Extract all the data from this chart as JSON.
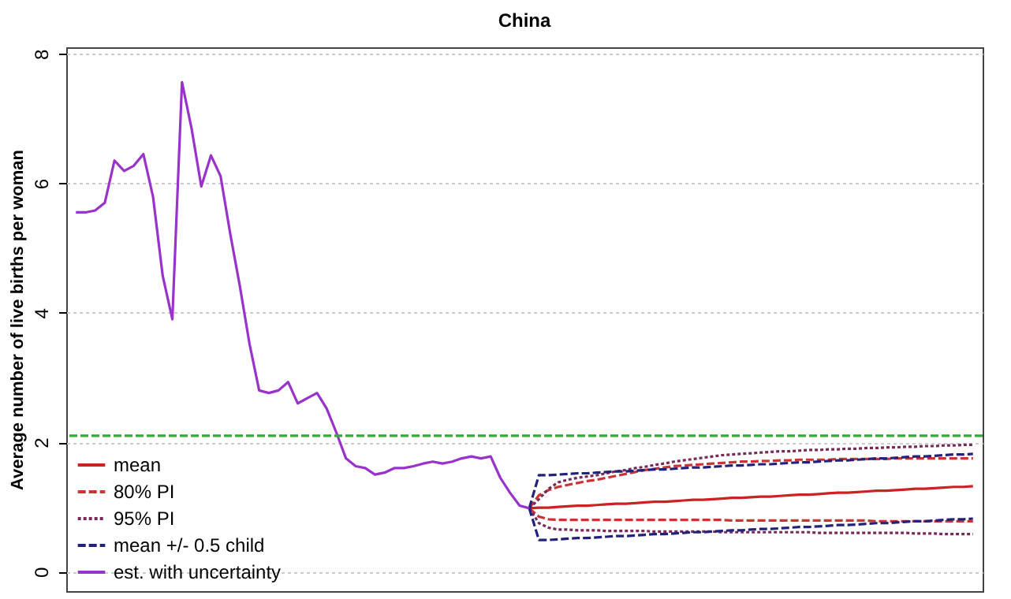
{
  "chart_data": {
    "type": "line",
    "title": "China",
    "ylabel": "Average number of live births per woman",
    "categories": [
      null,
      null,
      null,
      null,
      null,
      null,
      null,
      null,
      null,
      null,
      null,
      null,
      null,
      null,
      null,
      null,
      null,
      null,
      null,
      null,
      null,
      null,
      null,
      null,
      null,
      null,
      null,
      null,
      null,
      null,
      null,
      null,
      null,
      null,
      null,
      null,
      null,
      null,
      null,
      null,
      null,
      null,
      null,
      null,
      null,
      null,
      null,
      null,
      null,
      null,
      null,
      null,
      null,
      null,
      null,
      null,
      null,
      null,
      null,
      null,
      null,
      null,
      null,
      null,
      null,
      null,
      null,
      null,
      null,
      null,
      null,
      null,
      null,
      null,
      null,
      null,
      null,
      null,
      null,
      null,
      null,
      null,
      null,
      null,
      null,
      null,
      null,
      null,
      null,
      null,
      null,
      null,
      null,
      null
    ],
    "ylim": [
      -0.3,
      8.1
    ],
    "yticks": [
      0,
      2,
      4,
      6,
      8
    ],
    "grid": "y",
    "tick_labels": "y",
    "legend": "bottom left",
    "ref_lines": [
      {
        "axis": "y",
        "value": 2.1,
        "color": "#33aa33",
        "line_style": "dashed"
      }
    ],
    "series": [
      {
        "name": "mean",
        "color": "#cc2222",
        "line_style": "solid",
        "values": [
          null,
          null,
          null,
          null,
          null,
          null,
          null,
          null,
          null,
          null,
          null,
          null,
          null,
          null,
          null,
          null,
          null,
          null,
          null,
          null,
          null,
          null,
          null,
          null,
          null,
          null,
          null,
          null,
          null,
          null,
          null,
          null,
          null,
          null,
          null,
          null,
          null,
          null,
          null,
          null,
          null,
          null,
          null,
          null,
          null,
          null,
          null,
          0.98,
          0.99,
          0.99,
          1.0,
          1.01,
          1.02,
          1.02,
          1.03,
          1.04,
          1.05,
          1.05,
          1.06,
          1.07,
          1.08,
          1.08,
          1.09,
          1.1,
          1.11,
          1.11,
          1.12,
          1.13,
          1.14,
          1.14,
          1.15,
          1.16,
          1.16,
          1.17,
          1.18,
          1.19,
          1.19,
          1.2,
          1.21,
          1.22,
          1.22,
          1.23,
          1.24,
          1.25,
          1.25,
          1.26,
          1.27,
          1.28,
          1.28,
          1.29,
          1.3,
          1.31,
          1.31,
          1.32
        ]
      },
      {
        "name": "80% PI",
        "color": "#cc3333",
        "line_style": "dashed",
        "values": [
          null,
          null,
          null,
          null,
          null,
          null,
          null,
          null,
          null,
          null,
          null,
          null,
          null,
          null,
          null,
          null,
          null,
          null,
          null,
          null,
          null,
          null,
          null,
          null,
          null,
          null,
          null,
          null,
          null,
          null,
          null,
          null,
          null,
          null,
          null,
          null,
          null,
          null,
          null,
          null,
          null,
          null,
          null,
          null,
          null,
          null,
          null,
          0.98,
          1.18,
          1.26,
          1.31,
          1.34,
          1.37,
          1.4,
          1.42,
          1.45,
          1.48,
          1.51,
          1.54,
          1.57,
          1.59,
          1.61,
          1.63,
          1.64,
          1.65,
          1.66,
          1.67,
          1.68,
          1.69,
          1.7,
          1.7,
          1.71,
          1.71,
          1.72,
          1.72,
          1.73,
          1.73,
          1.73,
          1.73,
          1.74,
          1.74,
          1.74,
          1.74,
          1.74,
          1.74,
          1.75,
          1.75,
          1.75,
          1.75,
          1.75,
          1.75,
          1.75,
          1.75,
          1.75
        ]
      },
      {
        "color": "#cc3333",
        "line_style": "dashed",
        "values": [
          null,
          null,
          null,
          null,
          null,
          null,
          null,
          null,
          null,
          null,
          null,
          null,
          null,
          null,
          null,
          null,
          null,
          null,
          null,
          null,
          null,
          null,
          null,
          null,
          null,
          null,
          null,
          null,
          null,
          null,
          null,
          null,
          null,
          null,
          null,
          null,
          null,
          null,
          null,
          null,
          null,
          null,
          null,
          null,
          null,
          null,
          null,
          0.98,
          0.85,
          0.81,
          0.8,
          0.8,
          0.8,
          0.8,
          0.8,
          0.8,
          0.8,
          0.8,
          0.8,
          0.8,
          0.8,
          0.8,
          0.8,
          0.8,
          0.8,
          0.8,
          0.8,
          0.8,
          0.79,
          0.79,
          0.79,
          0.79,
          0.79,
          0.79,
          0.79,
          0.79,
          0.79,
          0.79,
          0.79,
          0.79,
          0.79,
          0.79,
          0.79,
          0.78,
          0.78,
          0.78,
          0.78,
          0.78,
          0.78,
          0.78,
          0.78,
          0.78,
          0.78,
          0.78
        ]
      },
      {
        "name": "95% PI",
        "color": "#7a2a5a",
        "line_style": "dotted",
        "values": [
          null,
          null,
          null,
          null,
          null,
          null,
          null,
          null,
          null,
          null,
          null,
          null,
          null,
          null,
          null,
          null,
          null,
          null,
          null,
          null,
          null,
          null,
          null,
          null,
          null,
          null,
          null,
          null,
          null,
          null,
          null,
          null,
          null,
          null,
          null,
          null,
          null,
          null,
          null,
          null,
          null,
          null,
          null,
          null,
          null,
          null,
          null,
          0.98,
          1.12,
          1.28,
          1.38,
          1.42,
          1.45,
          1.47,
          1.49,
          1.52,
          1.55,
          1.57,
          1.6,
          1.62,
          1.65,
          1.67,
          1.7,
          1.72,
          1.74,
          1.76,
          1.78,
          1.8,
          1.81,
          1.82,
          1.83,
          1.84,
          1.85,
          1.86,
          1.86,
          1.87,
          1.88,
          1.88,
          1.89,
          1.89,
          1.9,
          1.9,
          1.91,
          1.91,
          1.92,
          1.92,
          1.93,
          1.93,
          1.94,
          1.94,
          1.95,
          1.95,
          1.96,
          1.96
        ]
      },
      {
        "color": "#7a2a5a",
        "line_style": "dotted",
        "values": [
          null,
          null,
          null,
          null,
          null,
          null,
          null,
          null,
          null,
          null,
          null,
          null,
          null,
          null,
          null,
          null,
          null,
          null,
          null,
          null,
          null,
          null,
          null,
          null,
          null,
          null,
          null,
          null,
          null,
          null,
          null,
          null,
          null,
          null,
          null,
          null,
          null,
          null,
          null,
          null,
          null,
          null,
          null,
          null,
          null,
          null,
          null,
          0.98,
          0.75,
          0.68,
          0.65,
          0.65,
          0.64,
          0.64,
          0.64,
          0.63,
          0.63,
          0.63,
          0.63,
          0.63,
          0.62,
          0.62,
          0.62,
          0.62,
          0.62,
          0.62,
          0.62,
          0.61,
          0.61,
          0.61,
          0.61,
          0.61,
          0.61,
          0.61,
          0.61,
          0.61,
          0.61,
          0.6,
          0.6,
          0.6,
          0.6,
          0.6,
          0.6,
          0.6,
          0.6,
          0.6,
          0.6,
          0.59,
          0.59,
          0.59,
          0.58,
          0.58,
          0.58,
          0.58
        ]
      },
      {
        "name": "mean +/- 0.5 child",
        "color": "#22227a",
        "line_style": "dashed",
        "values": [
          null,
          null,
          null,
          null,
          null,
          null,
          null,
          null,
          null,
          null,
          null,
          null,
          null,
          null,
          null,
          null,
          null,
          null,
          null,
          null,
          null,
          null,
          null,
          null,
          null,
          null,
          null,
          null,
          null,
          null,
          null,
          null,
          null,
          null,
          null,
          null,
          null,
          null,
          null,
          null,
          null,
          null,
          null,
          null,
          null,
          null,
          null,
          0.98,
          1.49,
          1.49,
          1.5,
          1.51,
          1.52,
          1.52,
          1.53,
          1.54,
          1.55,
          1.55,
          1.56,
          1.57,
          1.58,
          1.58,
          1.59,
          1.6,
          1.61,
          1.61,
          1.62,
          1.63,
          1.64,
          1.64,
          1.65,
          1.66,
          1.66,
          1.67,
          1.68,
          1.69,
          1.69,
          1.7,
          1.71,
          1.72,
          1.72,
          1.73,
          1.74,
          1.75,
          1.75,
          1.76,
          1.77,
          1.78,
          1.78,
          1.79,
          1.8,
          1.81,
          1.81,
          1.82
        ]
      },
      {
        "color": "#22227a",
        "line_style": "dashed",
        "values": [
          null,
          null,
          null,
          null,
          null,
          null,
          null,
          null,
          null,
          null,
          null,
          null,
          null,
          null,
          null,
          null,
          null,
          null,
          null,
          null,
          null,
          null,
          null,
          null,
          null,
          null,
          null,
          null,
          null,
          null,
          null,
          null,
          null,
          null,
          null,
          null,
          null,
          null,
          null,
          null,
          null,
          null,
          null,
          null,
          null,
          null,
          null,
          0.98,
          0.49,
          0.49,
          0.5,
          0.51,
          0.52,
          0.52,
          0.53,
          0.54,
          0.55,
          0.55,
          0.56,
          0.57,
          0.58,
          0.58,
          0.59,
          0.6,
          0.61,
          0.61,
          0.62,
          0.63,
          0.64,
          0.64,
          0.65,
          0.66,
          0.66,
          0.67,
          0.68,
          0.69,
          0.69,
          0.7,
          0.71,
          0.72,
          0.72,
          0.73,
          0.74,
          0.75,
          0.75,
          0.76,
          0.77,
          0.78,
          0.78,
          0.79,
          0.8,
          0.81,
          0.81,
          0.82
        ]
      },
      {
        "name": "est. with uncertainty",
        "color": "#9933cc",
        "line_style": "solid",
        "values": [
          5.55,
          5.55,
          5.58,
          5.7,
          6.35,
          6.19,
          6.27,
          6.45,
          5.79,
          4.57,
          3.9,
          7.56,
          6.84,
          5.95,
          6.43,
          6.11,
          5.22,
          4.41,
          3.52,
          2.8,
          2.76,
          2.8,
          2.93,
          2.6,
          2.68,
          2.76,
          2.52,
          2.15,
          1.75,
          1.63,
          1.6,
          1.5,
          1.53,
          1.6,
          1.6,
          1.63,
          1.67,
          1.7,
          1.67,
          1.7,
          1.75,
          1.78,
          1.75,
          1.78,
          1.45,
          1.22,
          1.02,
          0.98,
          null,
          null,
          null,
          null,
          null,
          null,
          null,
          null,
          null,
          null,
          null,
          null,
          null,
          null,
          null,
          null,
          null,
          null,
          null,
          null,
          null,
          null,
          null,
          null,
          null,
          null,
          null,
          null,
          null,
          null,
          null,
          null,
          null,
          null,
          null,
          null,
          null,
          null,
          null,
          null,
          null,
          null,
          null,
          null,
          null,
          null
        ]
      }
    ]
  }
}
